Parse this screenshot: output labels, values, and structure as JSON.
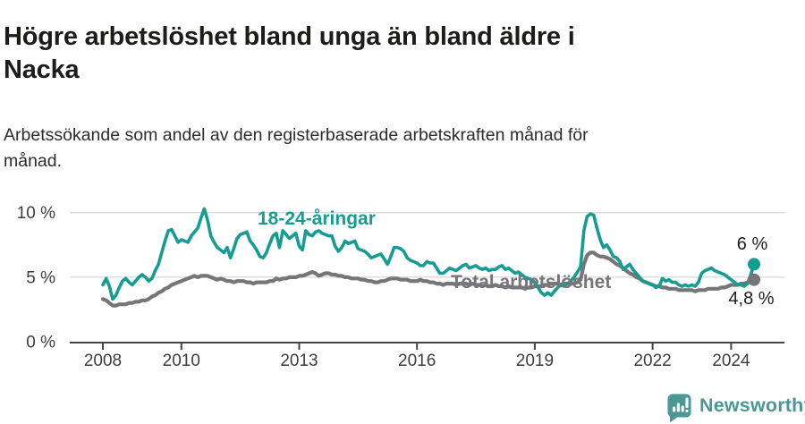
{
  "header": {
    "title_lines": [
      "Högre arbetslöshet bland unga än bland äldre i",
      "Nacka"
    ],
    "subtitle_lines": [
      "Arbetssökande som andel av den registerbaserade arbetskraften månad för",
      "månad."
    ]
  },
  "chart_data": {
    "type": "line",
    "title": "Högre arbetslöshet bland unga än bland äldre i Nacka",
    "subtitle": "Arbetssökande som andel av den registerbaserade arbetskraften månad för månad.",
    "unit": "%",
    "frequency": "monthly",
    "x_start": "2008-01",
    "x_end": "2024-08",
    "grid": "horizontal",
    "x_axis": {
      "tick_years": [
        2008,
        2010,
        2013,
        2016,
        2019,
        2022,
        2024
      ]
    },
    "y_axis": {
      "ticks": [
        {
          "label": "0 %",
          "value": 0
        },
        {
          "label": "5 %",
          "value": 5
        },
        {
          "label": "10 %",
          "value": 10
        }
      ],
      "ylim": [
        0,
        10.5
      ]
    },
    "series": [
      {
        "name": "18-24-åringar",
        "color": "#149d90",
        "end_label": "6 %",
        "end_value": 6.0,
        "values": [
          4.4,
          4.9,
          4.3,
          3.3,
          3.6,
          4.2,
          4.7,
          4.9,
          4.6,
          4.4,
          4.7,
          5.0,
          5.2,
          5.0,
          4.7,
          4.9,
          5.5,
          6.0,
          6.9,
          7.8,
          8.6,
          8.7,
          8.2,
          7.7,
          7.9,
          7.8,
          7.7,
          8.2,
          8.5,
          8.8,
          9.6,
          10.3,
          9.4,
          8.2,
          7.7,
          7.3,
          7.1,
          6.9,
          7.3,
          6.5,
          7.2,
          8.0,
          8.3,
          8.4,
          8.5,
          7.8,
          7.5,
          7.1,
          6.6,
          6.5,
          6.9,
          7.6,
          8.2,
          8.4,
          7.3,
          8.6,
          8.3,
          8.0,
          8.2,
          8.4,
          7.4,
          7.1,
          8.6,
          8.3,
          8.2,
          8.5,
          8.6,
          8.4,
          8.3,
          8.2,
          8.2,
          7.4,
          7.0,
          7.3,
          7.8,
          7.6,
          7.7,
          7.8,
          7.2,
          7.1,
          7.0,
          6.8,
          6.5,
          6.6,
          6.7,
          6.8,
          6.4,
          6.0,
          6.6,
          7.3,
          7.3,
          7.2,
          7.0,
          6.5,
          6.3,
          6.2,
          6.1,
          5.9,
          5.9,
          6.2,
          6.1,
          6.1,
          5.7,
          5.3,
          5.3,
          5.5,
          5.7,
          5.6,
          5.5,
          5.7,
          5.9,
          6.0,
          5.7,
          5.8,
          5.9,
          5.7,
          5.6,
          5.7,
          5.5,
          5.6,
          5.6,
          5.8,
          5.9,
          5.6,
          5.7,
          5.5,
          5.3,
          5.4,
          5.2,
          5.0,
          4.9,
          4.8,
          4.6,
          4.2,
          3.8,
          3.6,
          3.8,
          3.6,
          3.9,
          4.2,
          4.4,
          4.3,
          4.5,
          4.7,
          5.0,
          5.4,
          5.8,
          8.6,
          9.7,
          9.9,
          9.8,
          8.8,
          7.9,
          7.3,
          7.5,
          7.1,
          6.6,
          6.5,
          6.2,
          5.6,
          5.8,
          6.0,
          5.6,
          5.3,
          5.0,
          4.7,
          4.6,
          4.5,
          4.4,
          4.2,
          4.3,
          4.9,
          4.7,
          4.8,
          4.6,
          4.6,
          4.4,
          4.3,
          4.4,
          4.3,
          4.4,
          4.3,
          4.6,
          5.3,
          5.5,
          5.6,
          5.7,
          5.5,
          5.4,
          5.3,
          5.2,
          5.0,
          4.8,
          4.6,
          4.4,
          4.4,
          4.3,
          4.5,
          5.2,
          6.0
        ]
      },
      {
        "name": "Total arbetslöshet",
        "color": "#76767a",
        "end_label": "4,8 %",
        "end_value": 4.8,
        "values": [
          3.3,
          3.2,
          3.0,
          2.8,
          2.8,
          2.9,
          2.9,
          2.9,
          3.0,
          3.0,
          3.1,
          3.1,
          3.2,
          3.2,
          3.3,
          3.5,
          3.6,
          3.8,
          3.9,
          4.1,
          4.2,
          4.4,
          4.5,
          4.6,
          4.7,
          4.8,
          4.9,
          5.0,
          5.1,
          5.0,
          5.1,
          5.1,
          5.1,
          5.0,
          4.9,
          4.8,
          4.9,
          4.8,
          4.7,
          4.7,
          4.6,
          4.7,
          4.7,
          4.7,
          4.6,
          4.6,
          4.5,
          4.6,
          4.6,
          4.6,
          4.6,
          4.7,
          4.7,
          4.9,
          4.8,
          4.9,
          4.9,
          5.0,
          5.0,
          5.0,
          5.1,
          5.1,
          5.2,
          5.3,
          5.4,
          5.3,
          5.1,
          5.2,
          5.3,
          5.3,
          5.2,
          5.2,
          5.1,
          5.1,
          5.0,
          5.0,
          4.9,
          4.9,
          4.9,
          4.8,
          4.8,
          4.7,
          4.7,
          4.6,
          4.6,
          4.7,
          4.7,
          4.8,
          4.9,
          4.9,
          4.9,
          4.8,
          4.8,
          4.8,
          4.7,
          4.7,
          4.7,
          4.8,
          4.7,
          4.7,
          4.6,
          4.6,
          4.5,
          4.5,
          4.4,
          4.5,
          4.5,
          4.5,
          4.4,
          4.5,
          4.5,
          4.5,
          4.4,
          4.5,
          4.4,
          4.4,
          4.3,
          4.4,
          4.3,
          4.3,
          4.4,
          4.3,
          4.3,
          4.2,
          4.3,
          4.2,
          4.2,
          4.2,
          4.2,
          4.1,
          4.2,
          4.2,
          4.3,
          4.3,
          4.3,
          4.4,
          4.4,
          4.5,
          4.5,
          4.5,
          4.4,
          4.5,
          4.5,
          4.5,
          4.5,
          4.6,
          4.8,
          6.0,
          6.7,
          6.9,
          6.9,
          6.7,
          6.6,
          6.6,
          6.5,
          6.4,
          6.2,
          6.0,
          5.9,
          5.7,
          5.5,
          5.3,
          5.2,
          5.0,
          4.9,
          4.7,
          4.6,
          4.5,
          4.4,
          4.3,
          4.3,
          4.2,
          4.2,
          4.1,
          4.1,
          4.1,
          4.0,
          4.0,
          4.0,
          4.0,
          4.0,
          3.9,
          4.0,
          4.0,
          4.0,
          4.1,
          4.1,
          4.1,
          4.1,
          4.2,
          4.2,
          4.3,
          4.4,
          4.4,
          4.4,
          4.5,
          4.5,
          4.6,
          4.7,
          4.8
        ]
      }
    ],
    "legend_position": "inline-labels"
  },
  "footer": {
    "brand": "Newsworthy",
    "logo_icon": "bar-chart-speech-bubble",
    "brand_color": "#4a9794"
  }
}
